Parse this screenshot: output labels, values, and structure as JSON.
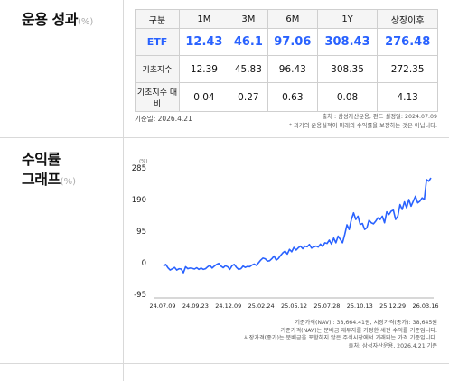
{
  "performance": {
    "title": "운용 성과",
    "unit": "(%)",
    "table": {
      "headers": [
        "구분",
        "1M",
        "3M",
        "6M",
        "1Y",
        "상장이후"
      ],
      "rows": [
        {
          "label": "ETF",
          "values": [
            "12.43",
            "46.1",
            "97.06",
            "308.43",
            "276.48"
          ]
        },
        {
          "label": "기초지수",
          "values": [
            "12.39",
            "45.83",
            "96.43",
            "308.35",
            "272.35"
          ]
        },
        {
          "label": "기초지수 대비",
          "values": [
            "0.04",
            "0.27",
            "0.63",
            "0.08",
            "4.13"
          ]
        }
      ]
    },
    "base_date": "기준일: 2026.4.21",
    "notes": [
      "출처 : 삼성자산운용, 펀드 설정일: 2024.07.09",
      "* 과거의 운용실적이 미래의 수익률을 보장하는 것은 아닙니다."
    ]
  },
  "return_graph": {
    "title_line1": "수익률",
    "title_line2": "그래프",
    "unit": "(%)",
    "notes": [
      "기준가격(NAV) : 38,664.41원, 시장가격(종가): 38,645원",
      "기준가격(NAV)는 분배금 재투자를 가정한 세전 수익률 기준입니다.",
      "시장가격(종가)는 분배금을 포함하지 않은 주식시장에서 거래되는 가격 기준입니다.",
      "출처: 삼성자산운용, 2026.4.21 기준"
    ]
  },
  "chart_data": {
    "type": "line",
    "ylabel": "(%)",
    "ylim": [
      -95,
      285
    ],
    "yticks": [
      285,
      190,
      95,
      0,
      -95
    ],
    "xticks": [
      "24.07.09",
      "24.09.23",
      "24.12.09",
      "25.02.24",
      "25.05.12",
      "25.07.28",
      "25.10.13",
      "25.12.29",
      "26.03.16"
    ],
    "color": "#2962ff",
    "series": [
      {
        "values": [
          -10,
          -5,
          -15,
          -22,
          -18,
          -14,
          -22,
          -18,
          -19,
          -30,
          -12,
          -18,
          -16,
          -17,
          -19,
          -15,
          -20,
          -16,
          -20,
          -18,
          -12,
          -8,
          -16,
          -10,
          -5,
          -2,
          -10,
          -15,
          -9,
          -12,
          -20,
          -9,
          -5,
          -14,
          -20,
          -18,
          -10,
          -14,
          -11,
          -12,
          -7,
          -4,
          -8,
          0,
          8,
          14,
          12,
          5,
          6,
          12,
          20,
          8,
          13,
          22,
          30,
          35,
          26,
          40,
          33,
          46,
          38,
          45,
          50,
          42,
          50,
          48,
          55,
          44,
          47,
          50,
          47,
          56,
          49,
          60,
          58,
          68,
          56,
          74,
          60,
          80,
          70,
          60,
          85,
          114,
          100,
          130,
          150,
          130,
          140,
          115,
          118,
          100,
          105,
          128,
          120,
          117,
          125,
          135,
          130,
          140,
          120,
          153,
          145,
          155,
          158,
          130,
          140,
          175,
          160,
          183,
          165,
          190,
          170,
          185,
          200,
          180,
          185,
          195,
          190,
          250,
          245,
          255
        ]
      }
    ]
  }
}
